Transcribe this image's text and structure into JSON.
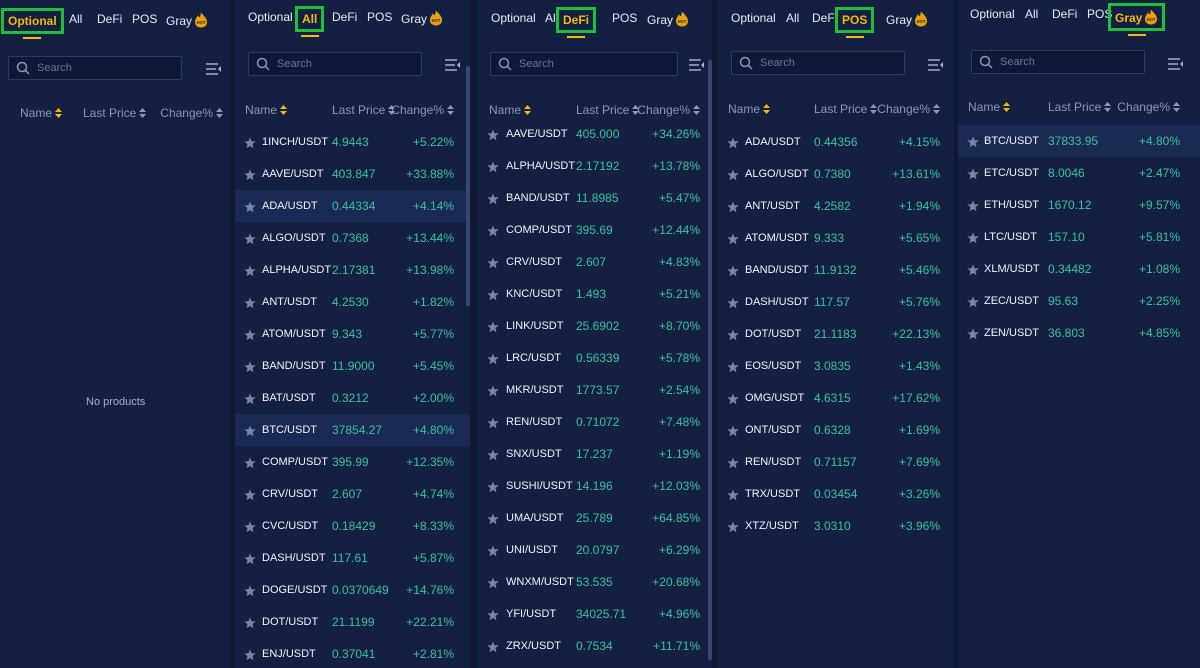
{
  "tab_labels": {
    "optional": "Optional",
    "all": "All",
    "defi": "DeFi",
    "pos": "POS",
    "gray": "Gray"
  },
  "hot_badge": "HOT",
  "search_placeholder": "Search",
  "columns": {
    "name": "Name",
    "last_price": "Last Price",
    "change": "Change%"
  },
  "colors": {
    "accent": "#f0b90b",
    "up": "#38c2a0",
    "highlight_box": "#1fbf3a"
  },
  "icons": [
    "search-icon",
    "list-menu-icon",
    "star-icon",
    "sort-icon",
    "hot-badge-icon"
  ],
  "panels": [
    {
      "active_tab": "optional",
      "empty_text": "No products",
      "rows": []
    },
    {
      "active_tab": "all",
      "rows": [
        {
          "pair": "1INCH/USDT",
          "price": "4.9443",
          "change": "+5.22%"
        },
        {
          "pair": "AAVE/USDT",
          "price": "403.847",
          "change": "+33.88%"
        },
        {
          "pair": "ADA/USDT",
          "price": "0.44334",
          "change": "+4.14%"
        },
        {
          "pair": "ALGO/USDT",
          "price": "0.7368",
          "change": "+13.44%"
        },
        {
          "pair": "ALPHA/USDT",
          "price": "2.17381",
          "change": "+13.98%"
        },
        {
          "pair": "ANT/USDT",
          "price": "4.2530",
          "change": "+1.82%"
        },
        {
          "pair": "ATOM/USDT",
          "price": "9.343",
          "change": "+5.77%"
        },
        {
          "pair": "BAND/USDT",
          "price": "11.9000",
          "change": "+5.45%"
        },
        {
          "pair": "BAT/USDT",
          "price": "0.3212",
          "change": "+2.00%"
        },
        {
          "pair": "BTC/USDT",
          "price": "37854.27",
          "change": "+4.80%"
        },
        {
          "pair": "COMP/USDT",
          "price": "395.99",
          "change": "+12.35%"
        },
        {
          "pair": "CRV/USDT",
          "price": "2.607",
          "change": "+4.74%"
        },
        {
          "pair": "CVC/USDT",
          "price": "0.18429",
          "change": "+8.33%"
        },
        {
          "pair": "DASH/USDT",
          "price": "117.61",
          "change": "+5.87%"
        },
        {
          "pair": "DOGE/USDT",
          "price": "0.0370649",
          "change": "+14.76%"
        },
        {
          "pair": "DOT/USDT",
          "price": "21.1199",
          "change": "+22.21%"
        },
        {
          "pair": "ENJ/USDT",
          "price": "0.37041",
          "change": "+2.81%"
        }
      ]
    },
    {
      "active_tab": "defi",
      "rows": [
        {
          "pair": "AAVE/USDT",
          "price": "405.000",
          "change": "+34.26%"
        },
        {
          "pair": "ALPHA/USDT",
          "price": "2.17192",
          "change": "+13.78%"
        },
        {
          "pair": "BAND/USDT",
          "price": "11.8985",
          "change": "+5.47%"
        },
        {
          "pair": "COMP/USDT",
          "price": "395.69",
          "change": "+12.44%"
        },
        {
          "pair": "CRV/USDT",
          "price": "2.607",
          "change": "+4.83%"
        },
        {
          "pair": "KNC/USDT",
          "price": "1.493",
          "change": "+5.21%"
        },
        {
          "pair": "LINK/USDT",
          "price": "25.6902",
          "change": "+8.70%"
        },
        {
          "pair": "LRC/USDT",
          "price": "0.56339",
          "change": "+5.78%"
        },
        {
          "pair": "MKR/USDT",
          "price": "1773.57",
          "change": "+2.54%"
        },
        {
          "pair": "REN/USDT",
          "price": "0.71072",
          "change": "+7.48%"
        },
        {
          "pair": "SNX/USDT",
          "price": "17.237",
          "change": "+1.19%"
        },
        {
          "pair": "SUSHI/USDT",
          "price": "14.196",
          "change": "+12.03%"
        },
        {
          "pair": "UMA/USDT",
          "price": "25.789",
          "change": "+64.85%"
        },
        {
          "pair": "UNI/USDT",
          "price": "20.0797",
          "change": "+6.29%"
        },
        {
          "pair": "WNXM/USDT",
          "price": "53.535",
          "change": "+20.68%"
        },
        {
          "pair": "YFI/USDT",
          "price": "34025.71",
          "change": "+4.96%"
        },
        {
          "pair": "ZRX/USDT",
          "price": "0.7534",
          "change": "+11.71%"
        }
      ]
    },
    {
      "active_tab": "pos",
      "rows": [
        {
          "pair": "ADA/USDT",
          "price": "0.44356",
          "change": "+4.15%"
        },
        {
          "pair": "ALGO/USDT",
          "price": "0.7380",
          "change": "+13.61%"
        },
        {
          "pair": "ANT/USDT",
          "price": "4.2582",
          "change": "+1.94%"
        },
        {
          "pair": "ATOM/USDT",
          "price": "9.333",
          "change": "+5.65%"
        },
        {
          "pair": "BAND/USDT",
          "price": "11.9132",
          "change": "+5.46%"
        },
        {
          "pair": "DASH/USDT",
          "price": "117.57",
          "change": "+5.76%"
        },
        {
          "pair": "DOT/USDT",
          "price": "21.1183",
          "change": "+22.13%"
        },
        {
          "pair": "EOS/USDT",
          "price": "3.0835",
          "change": "+1.43%"
        },
        {
          "pair": "OMG/USDT",
          "price": "4.6315",
          "change": "+17.62%"
        },
        {
          "pair": "ONT/USDT",
          "price": "0.6328",
          "change": "+1.69%"
        },
        {
          "pair": "REN/USDT",
          "price": "0.71157",
          "change": "+7.69%"
        },
        {
          "pair": "TRX/USDT",
          "price": "0.03454",
          "change": "+3.26%"
        },
        {
          "pair": "XTZ/USDT",
          "price": "3.0310",
          "change": "+3.96%"
        }
      ]
    },
    {
      "active_tab": "gray",
      "rows": [
        {
          "pair": "BTC/USDT",
          "price": "37833.95",
          "change": "+4.80%"
        },
        {
          "pair": "ETC/USDT",
          "price": "8.0046",
          "change": "+2.47%"
        },
        {
          "pair": "ETH/USDT",
          "price": "1670.12",
          "change": "+9.57%"
        },
        {
          "pair": "LTC/USDT",
          "price": "157.10",
          "change": "+5.81%"
        },
        {
          "pair": "XLM/USDT",
          "price": "0.34482",
          "change": "+1.08%"
        },
        {
          "pair": "ZEC/USDT",
          "price": "95.63",
          "change": "+2.25%"
        },
        {
          "pair": "ZEN/USDT",
          "price": "36.803",
          "change": "+4.85%"
        }
      ]
    }
  ]
}
